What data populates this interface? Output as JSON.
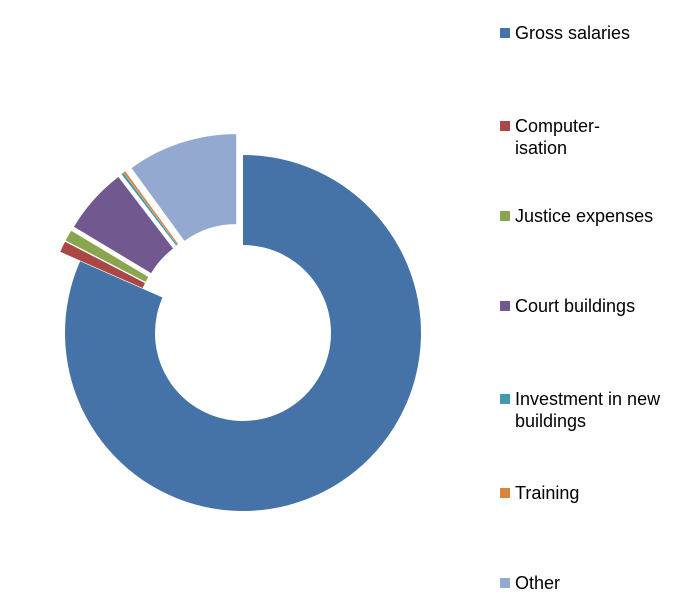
{
  "chart_data": {
    "type": "donut",
    "categories": [
      "Gross salaries",
      "Computer-\nisation",
      "Justice expenses",
      "Court buildings",
      "Investment in new\nbuildings",
      "Training",
      "Other"
    ],
    "values": [
      81.6,
      1,
      1,
      6,
      0.2,
      0.2,
      10
    ],
    "colors": [
      "#4572a7",
      "#aa4643",
      "#89a54e",
      "#71588f",
      "#4198af",
      "#db843d",
      "#93a9cf"
    ],
    "legend": "right"
  }
}
